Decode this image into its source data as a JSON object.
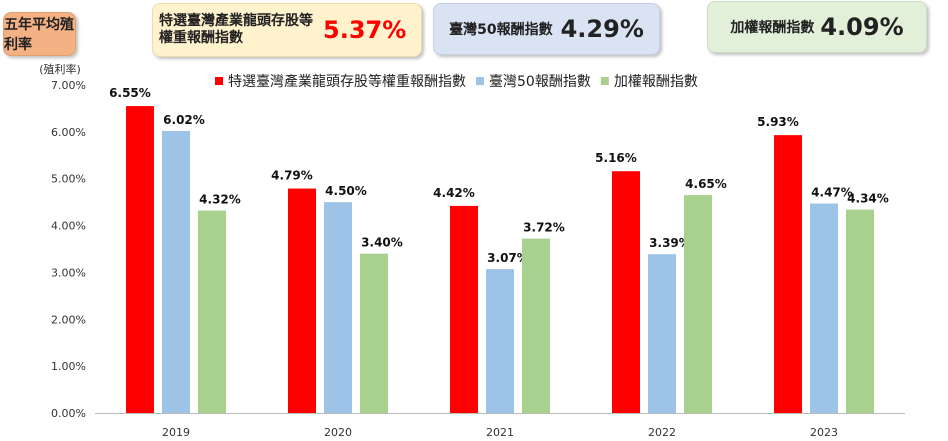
{
  "header": {
    "title": "五年平均殖利率",
    "cards": [
      {
        "label": "特選臺灣產業龍頭存股等權重報酬指數",
        "value": "5.37%"
      },
      {
        "label": "臺灣50報酬指數",
        "value": "4.29%"
      },
      {
        "label": "加權報酬指數",
        "value": "4.09%"
      }
    ]
  },
  "chart_data": {
    "type": "bar",
    "ylabel": "(殖利率)",
    "ylim": [
      0,
      7
    ],
    "yticks": [
      "0.00%",
      "1.00%",
      "2.00%",
      "3.00%",
      "4.00%",
      "5.00%",
      "6.00%",
      "7.00%"
    ],
    "categories": [
      "2019",
      "2020",
      "2021",
      "2022",
      "2023"
    ],
    "legend_position": "top",
    "series": [
      {
        "name": "特選臺灣產業龍頭存股等權重報酬指數",
        "color": "#ff0000",
        "values": [
          6.55,
          4.79,
          4.42,
          5.16,
          5.93
        ],
        "labels": [
          "6.55%",
          "4.79%",
          "4.42%",
          "5.16%",
          "5.93%"
        ]
      },
      {
        "name": "臺灣50報酬指數",
        "color": "#9dc3e6",
        "values": [
          6.02,
          4.5,
          3.07,
          3.39,
          4.47
        ],
        "labels": [
          "6.02%",
          "4.50%",
          "3.07%",
          "3.39%",
          "4.47%"
        ]
      },
      {
        "name": "加權報酬指數",
        "color": "#a9d18e",
        "values": [
          4.32,
          3.4,
          3.72,
          4.65,
          4.34
        ],
        "labels": [
          "4.32%",
          "3.40%",
          "3.72%",
          "4.65%",
          "4.34%"
        ]
      }
    ]
  }
}
